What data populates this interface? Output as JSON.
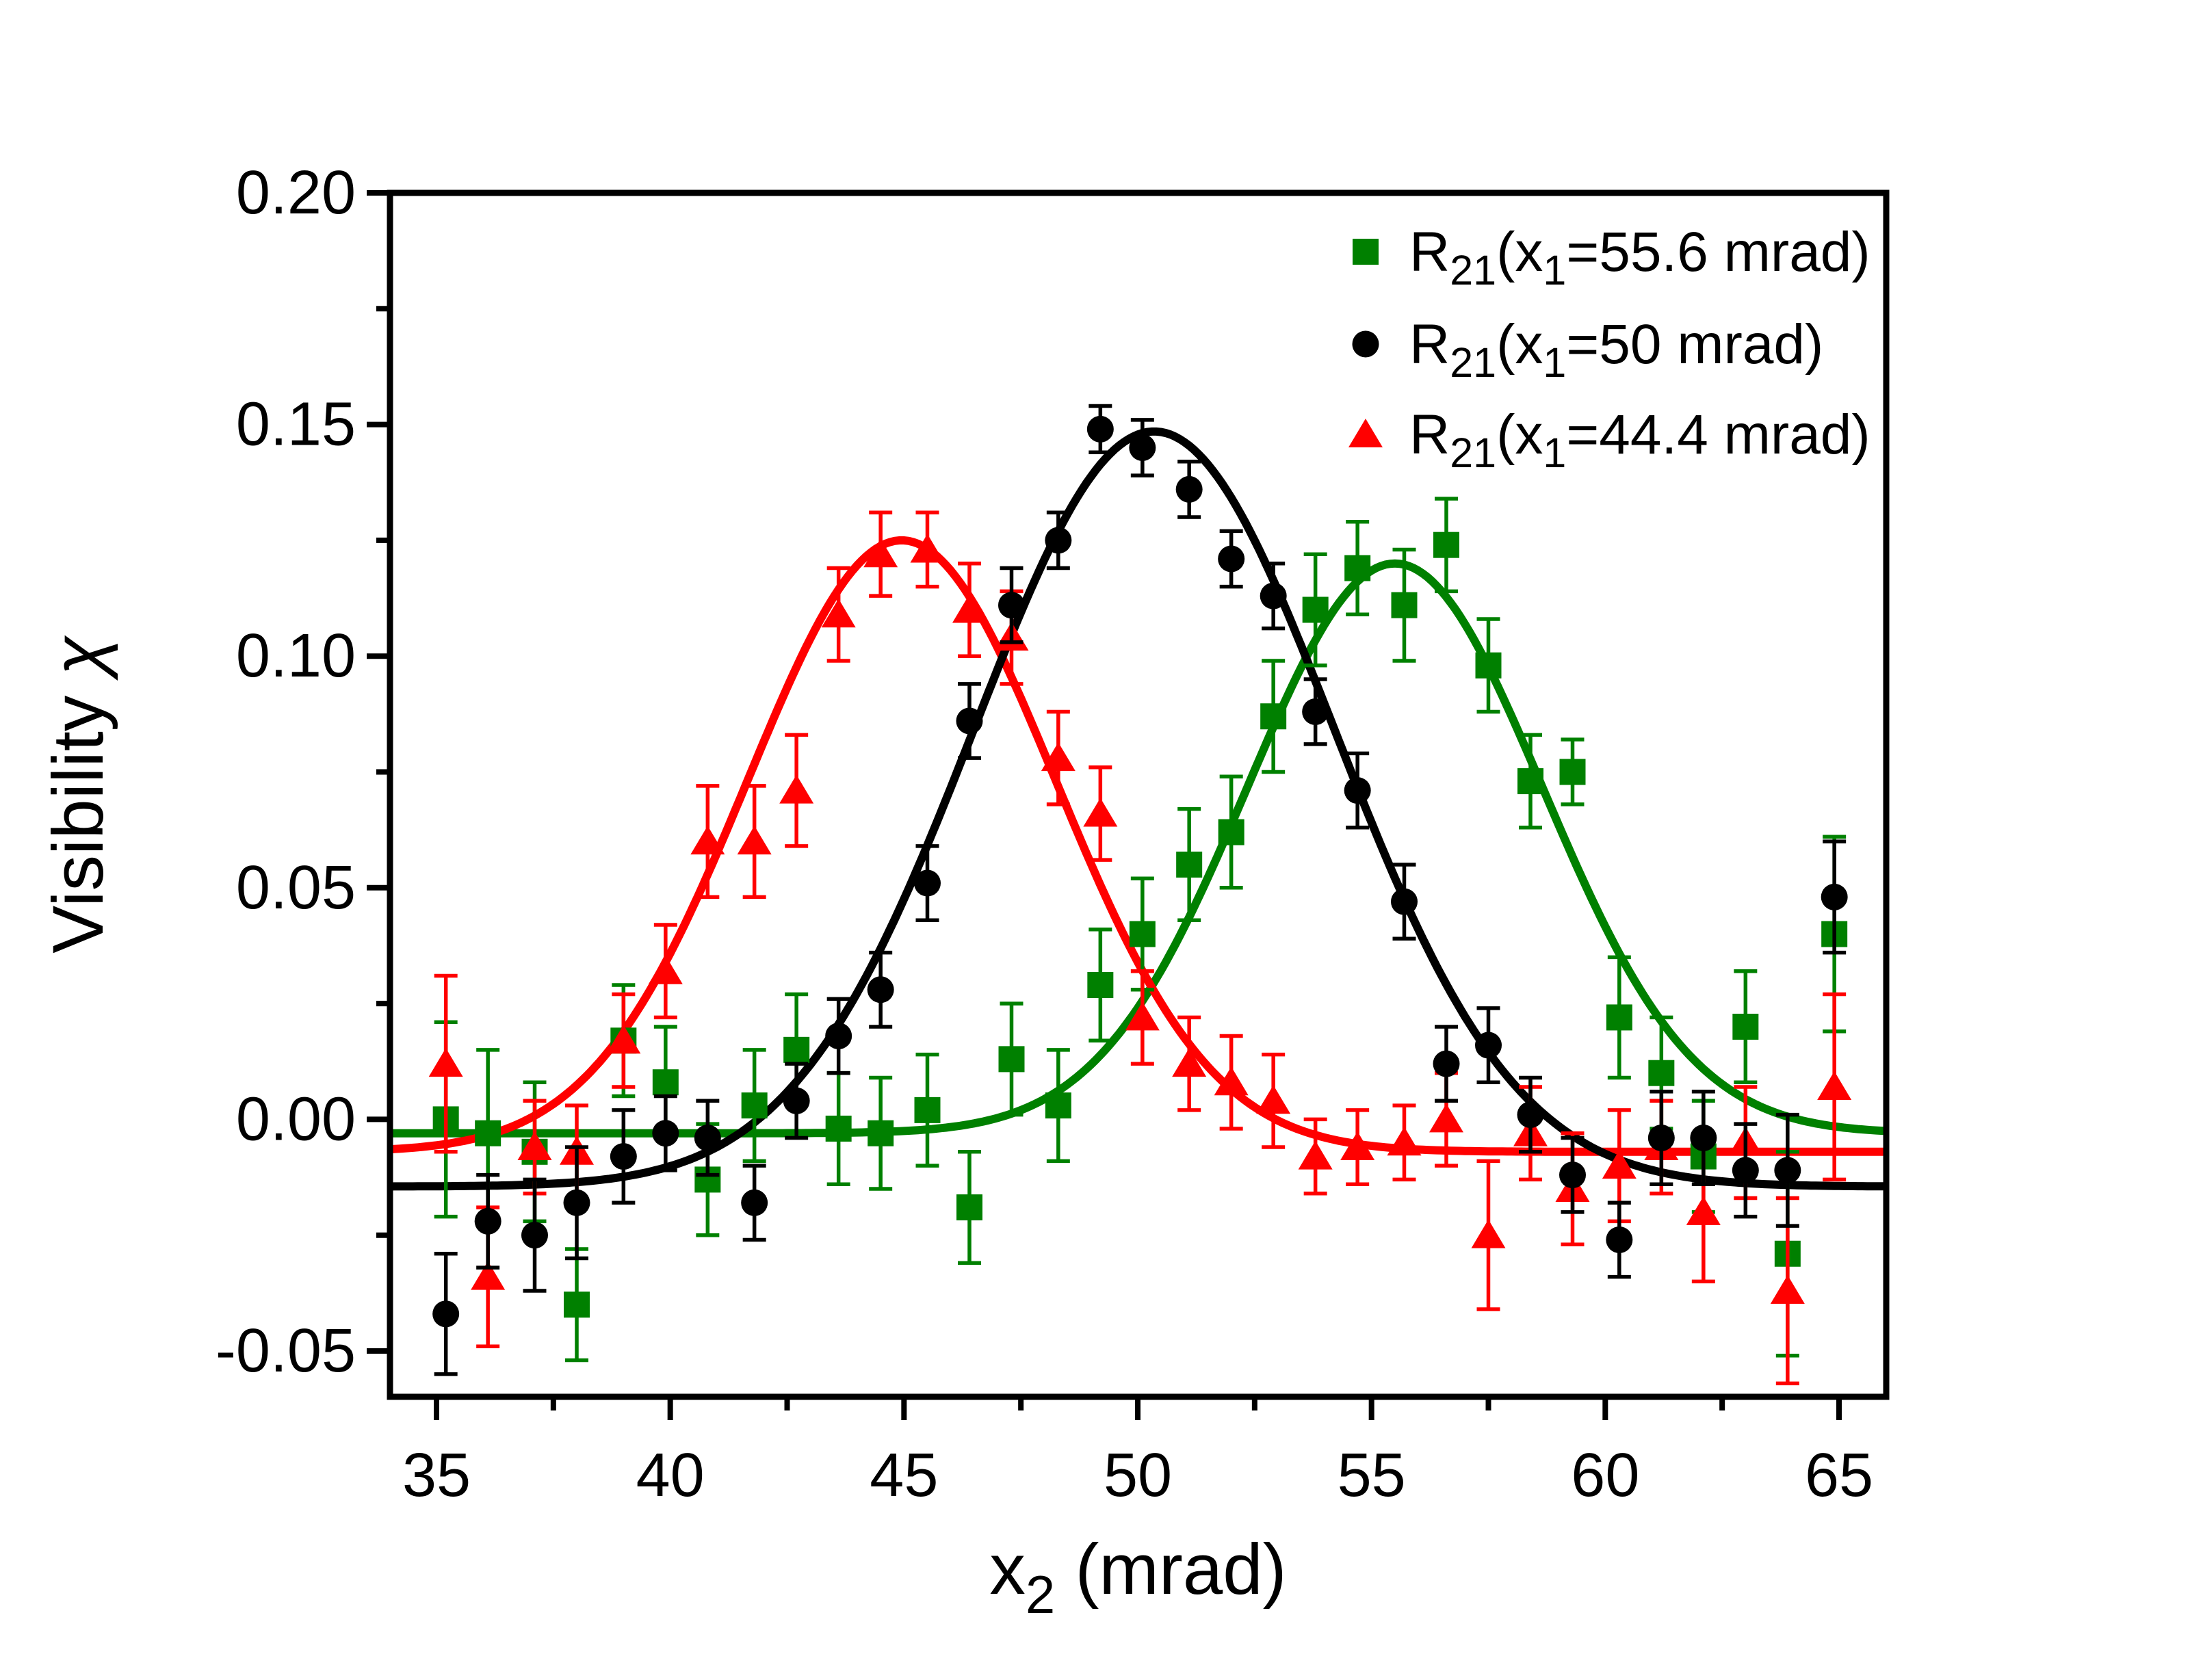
{
  "chart_data": {
    "type": "scatter",
    "title": "",
    "xlabel_parts": [
      {
        "t": "x"
      },
      {
        "t": "2",
        "sub": true
      },
      {
        "t": " (mrad)"
      }
    ],
    "ylabel_parts": [
      {
        "t": "Visibility "
      },
      {
        "t": "χ",
        "italic": true
      }
    ],
    "xlim": [
      34.0,
      66.0
    ],
    "ylim": [
      -0.06,
      0.2
    ],
    "grid": false,
    "legend_position": "top-right-inside",
    "x_tick_labels": [
      "35",
      "40",
      "45",
      "50",
      "55",
      "60",
      "65"
    ],
    "x_tick_values": [
      35,
      40,
      45,
      50,
      55,
      60,
      65
    ],
    "x_minor_tick_values": [
      37.5,
      42.5,
      47.5,
      52.5,
      57.5,
      62.5
    ],
    "y_tick_labels": [
      "0.20",
      "0.15",
      "0.10",
      "0.05",
      "0.00",
      "-0.05"
    ],
    "y_tick_values": [
      0.2,
      0.15,
      0.1,
      0.05,
      0.0,
      -0.05
    ],
    "y_minor_tick_values": [
      0.175,
      0.125,
      0.075,
      0.025,
      -0.025
    ],
    "x": [
      35.2,
      36.1,
      37.1,
      38.0,
      39.0,
      39.9,
      40.8,
      41.8,
      42.7,
      43.6,
      44.5,
      45.5,
      46.4,
      47.3,
      48.3,
      49.2,
      50.1,
      51.1,
      52.0,
      52.9,
      53.8,
      54.7,
      55.7,
      56.6,
      57.5,
      58.4,
      59.3,
      60.3,
      61.2,
      62.1,
      63.0,
      63.9,
      64.9
    ],
    "series": [
      {
        "id": "green",
        "marker": "square",
        "color": "#008000",
        "label_parts": [
          {
            "t": "R"
          },
          {
            "t": "21",
            "sub": true
          },
          {
            "t": "(x"
          },
          {
            "t": "1",
            "sub": true
          },
          {
            "t": "=55.6 mrad)"
          }
        ],
        "values": [
          0.0,
          -0.003,
          -0.007,
          -0.04,
          0.017,
          0.008,
          -0.013,
          0.003,
          0.015,
          -0.002,
          -0.003,
          0.002,
          -0.019,
          0.013,
          0.003,
          0.029,
          0.04,
          0.055,
          0.062,
          0.087,
          0.11,
          0.119,
          0.111,
          0.124,
          0.098,
          0.073,
          0.075,
          0.022,
          0.01,
          -0.008,
          0.02,
          -0.029,
          0.04
        ],
        "errors": [
          0.021,
          0.018,
          0.015,
          0.012,
          0.012,
          0.012,
          0.012,
          0.012,
          0.012,
          0.012,
          0.012,
          0.012,
          0.012,
          0.012,
          0.012,
          0.012,
          0.012,
          0.012,
          0.012,
          0.012,
          0.012,
          0.01,
          0.012,
          0.01,
          0.01,
          0.01,
          0.007,
          0.013,
          0.012,
          0.012,
          0.012,
          0.022,
          0.021
        ],
        "fit": {
          "baseline": -0.003,
          "amplitude": 0.123,
          "center": 55.5,
          "sigma": 3.16
        }
      },
      {
        "id": "black",
        "marker": "circle",
        "color": "#000000",
        "label_parts": [
          {
            "t": "R"
          },
          {
            "t": "21",
            "sub": true
          },
          {
            "t": "(x"
          },
          {
            "t": "1",
            "sub": true
          },
          {
            "t": "=50 mrad)"
          }
        ],
        "values": [
          -0.042,
          -0.022,
          -0.025,
          -0.018,
          -0.008,
          -0.003,
          -0.004,
          -0.018,
          0.004,
          0.018,
          0.028,
          0.051,
          0.086,
          0.111,
          0.125,
          0.149,
          0.145,
          0.136,
          0.121,
          0.113,
          0.088,
          0.071,
          0.047,
          0.012,
          0.016,
          0.001,
          -0.012,
          -0.026,
          -0.004,
          -0.004,
          -0.011,
          -0.011,
          0.048
        ],
        "errors": [
          0.013,
          0.01,
          0.012,
          0.012,
          0.01,
          0.008,
          0.008,
          0.008,
          0.008,
          0.008,
          0.008,
          0.008,
          0.008,
          0.008,
          0.006,
          0.005,
          0.006,
          0.006,
          0.006,
          0.007,
          0.007,
          0.008,
          0.008,
          0.008,
          0.008,
          0.008,
          0.008,
          0.008,
          0.01,
          0.01,
          0.01,
          0.012,
          0.012
        ],
        "fit": {
          "baseline": -0.0145,
          "amplitude": 0.163,
          "center": 50.35,
          "sigma": 3.85
        }
      },
      {
        "id": "red",
        "marker": "triangle",
        "color": "#ff0000",
        "label_parts": [
          {
            "t": "R"
          },
          {
            "t": "21",
            "sub": true
          },
          {
            "t": "(x"
          },
          {
            "t": "1",
            "sub": true
          },
          {
            "t": "=44.4 mrad)"
          }
        ],
        "values": [
          0.012,
          -0.034,
          -0.006,
          -0.007,
          0.017,
          0.032,
          0.06,
          0.06,
          0.071,
          0.109,
          0.122,
          0.123,
          0.11,
          0.104,
          0.078,
          0.066,
          0.022,
          0.012,
          0.008,
          0.004,
          -0.008,
          -0.006,
          -0.005,
          0.0,
          -0.025,
          -0.003,
          -0.015,
          -0.01,
          -0.006,
          -0.02,
          -0.005,
          -0.037,
          0.007
        ],
        "errors": [
          0.019,
          0.015,
          0.01,
          0.01,
          0.01,
          0.01,
          0.012,
          0.012,
          0.012,
          0.01,
          0.009,
          0.008,
          0.01,
          0.01,
          0.01,
          0.01,
          0.01,
          0.01,
          0.01,
          0.01,
          0.008,
          0.008,
          0.008,
          0.01,
          0.016,
          0.01,
          0.012,
          0.012,
          0.01,
          0.015,
          0.012,
          0.02,
          0.02
        ],
        "fit": {
          "baseline": -0.007,
          "amplitude": 0.132,
          "center": 44.95,
          "sigma": 3.3
        }
      }
    ],
    "z_order": [
      "green",
      "red",
      "black"
    ]
  }
}
